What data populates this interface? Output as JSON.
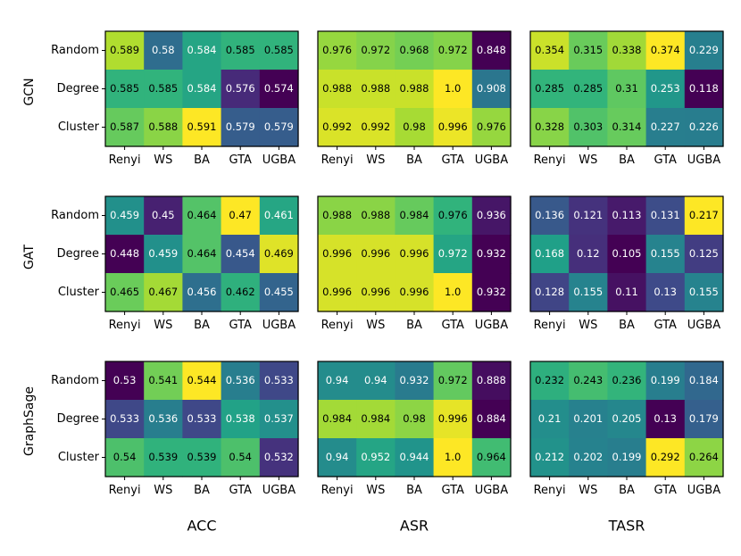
{
  "chart_data": {
    "type": "heatmap",
    "colormap": "viridis",
    "row_labels": [
      "Random",
      "Degree",
      "Cluster"
    ],
    "col_labels": [
      "Renyi",
      "WS",
      "BA",
      "GTA",
      "UGBA"
    ],
    "models": [
      "GCN",
      "GAT",
      "GraphSage"
    ],
    "metrics": [
      "ACC",
      "ASR",
      "TASR"
    ],
    "panels": [
      {
        "model": "GCN",
        "metric": "ACC",
        "values": [
          [
            "0.589",
            "0.58",
            "0.584",
            "0.585",
            "0.585"
          ],
          [
            "0.585",
            "0.585",
            "0.584",
            "0.576",
            "0.574"
          ],
          [
            "0.587",
            "0.588",
            "0.591",
            "0.579",
            "0.579"
          ]
        ]
      },
      {
        "model": "GCN",
        "metric": "ASR",
        "values": [
          [
            "0.976",
            "0.972",
            "0.968",
            "0.972",
            "0.848"
          ],
          [
            "0.988",
            "0.988",
            "0.988",
            "1.0",
            "0.908"
          ],
          [
            "0.992",
            "0.992",
            "0.98",
            "0.996",
            "0.976"
          ]
        ]
      },
      {
        "model": "GCN",
        "metric": "TASR",
        "values": [
          [
            "0.354",
            "0.315",
            "0.338",
            "0.374",
            "0.229"
          ],
          [
            "0.285",
            "0.285",
            "0.31",
            "0.253",
            "0.118"
          ],
          [
            "0.328",
            "0.303",
            "0.314",
            "0.227",
            "0.226"
          ]
        ]
      },
      {
        "model": "GAT",
        "metric": "ACC",
        "values": [
          [
            "0.459",
            "0.45",
            "0.464",
            "0.47",
            "0.461"
          ],
          [
            "0.448",
            "0.459",
            "0.464",
            "0.454",
            "0.469"
          ],
          [
            "0.465",
            "0.467",
            "0.456",
            "0.462",
            "0.455"
          ]
        ]
      },
      {
        "model": "GAT",
        "metric": "ASR",
        "values": [
          [
            "0.988",
            "0.988",
            "0.984",
            "0.976",
            "0.936"
          ],
          [
            "0.996",
            "0.996",
            "0.996",
            "0.972",
            "0.932"
          ],
          [
            "0.996",
            "0.996",
            "0.996",
            "1.0",
            "0.932"
          ]
        ]
      },
      {
        "model": "GAT",
        "metric": "TASR",
        "values": [
          [
            "0.136",
            "0.121",
            "0.113",
            "0.131",
            "0.217"
          ],
          [
            "0.168",
            "0.12",
            "0.105",
            "0.155",
            "0.125"
          ],
          [
            "0.128",
            "0.155",
            "0.11",
            "0.13",
            "0.155"
          ]
        ]
      },
      {
        "model": "GraphSage",
        "metric": "ACC",
        "values": [
          [
            "0.53",
            "0.541",
            "0.544",
            "0.536",
            "0.533"
          ],
          [
            "0.533",
            "0.536",
            "0.533",
            "0.538",
            "0.537"
          ],
          [
            "0.54",
            "0.539",
            "0.539",
            "0.54",
            "0.532"
          ]
        ]
      },
      {
        "model": "GraphSage",
        "metric": "ASR",
        "values": [
          [
            "0.94",
            "0.94",
            "0.932",
            "0.972",
            "0.888"
          ],
          [
            "0.984",
            "0.984",
            "0.98",
            "0.996",
            "0.884"
          ],
          [
            "0.94",
            "0.952",
            "0.944",
            "1.0",
            "0.964"
          ]
        ]
      },
      {
        "model": "GraphSage",
        "metric": "TASR",
        "values": [
          [
            "0.232",
            "0.243",
            "0.236",
            "0.199",
            "0.184"
          ],
          [
            "0.21",
            "0.201",
            "0.205",
            "0.13",
            "0.179"
          ],
          [
            "0.212",
            "0.202",
            "0.199",
            "0.292",
            "0.264"
          ]
        ]
      }
    ]
  }
}
